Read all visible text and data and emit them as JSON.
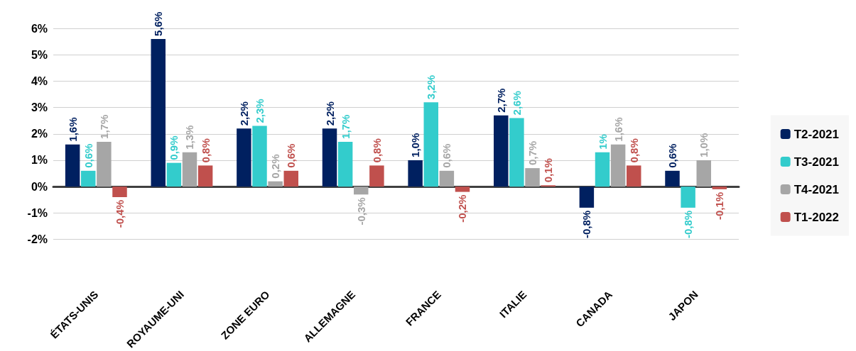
{
  "chart_data": {
    "type": "bar",
    "categories": [
      "ÉTATS-UNIS",
      "ROYAUME-UNI",
      "ZONE EURO",
      "ALLEMAGNE",
      "FRANCE",
      "ITALIE",
      "CANADA",
      "JAPON"
    ],
    "series": [
      {
        "name": "T2-2021",
        "color": "#002060",
        "values": [
          1.6,
          5.6,
          2.2,
          2.2,
          1.0,
          2.7,
          -0.8,
          0.6
        ],
        "value_labels": [
          "1,6%",
          "5,6%",
          "2,2%",
          "2,2%",
          "1,0%",
          "2,7%",
          "-0,8%",
          "0,6%"
        ]
      },
      {
        "name": "T3-2021",
        "color": "#33cccc",
        "values": [
          0.6,
          0.9,
          2.3,
          1.7,
          3.2,
          2.6,
          1.3,
          -0.8
        ],
        "value_labels": [
          "0,6%",
          "0,9%",
          "2,3%",
          "1,7%",
          "3,2%",
          "2,6%",
          "1%",
          "-0,8%"
        ]
      },
      {
        "name": "T4-2021",
        "color": "#a6a6a6",
        "values": [
          1.7,
          1.3,
          0.2,
          -0.3,
          0.6,
          0.7,
          1.6,
          1.0
        ],
        "value_labels": [
          "1,7%",
          "1,3%",
          "0,2%",
          "-0,3%",
          "0,6%",
          "0,7%",
          "1,6%",
          "1,0%"
        ]
      },
      {
        "name": "T1-2022",
        "color": "#c0504d",
        "values": [
          -0.4,
          0.8,
          0.6,
          0.8,
          -0.2,
          0.05,
          0.8,
          -0.1
        ],
        "value_labels": [
          "-0,4%",
          "0,8%",
          "0,6%",
          "0,8%",
          "-0,2%",
          "0,1%",
          "0,8%",
          "-0,1%"
        ]
      }
    ],
    "ylim": [
      -2,
      6
    ],
    "yticks": [
      {
        "value": -2,
        "label": "-2%"
      },
      {
        "value": -1,
        "label": "-1%"
      },
      {
        "value": 0,
        "label": "0%"
      },
      {
        "value": 1,
        "label": "1%"
      },
      {
        "value": 2,
        "label": "2%"
      },
      {
        "value": 3,
        "label": "3%"
      },
      {
        "value": 4,
        "label": "4%"
      },
      {
        "value": 5,
        "label": "5%"
      },
      {
        "value": 6,
        "label": "6%"
      }
    ],
    "grid": "y",
    "legend": "right"
  }
}
